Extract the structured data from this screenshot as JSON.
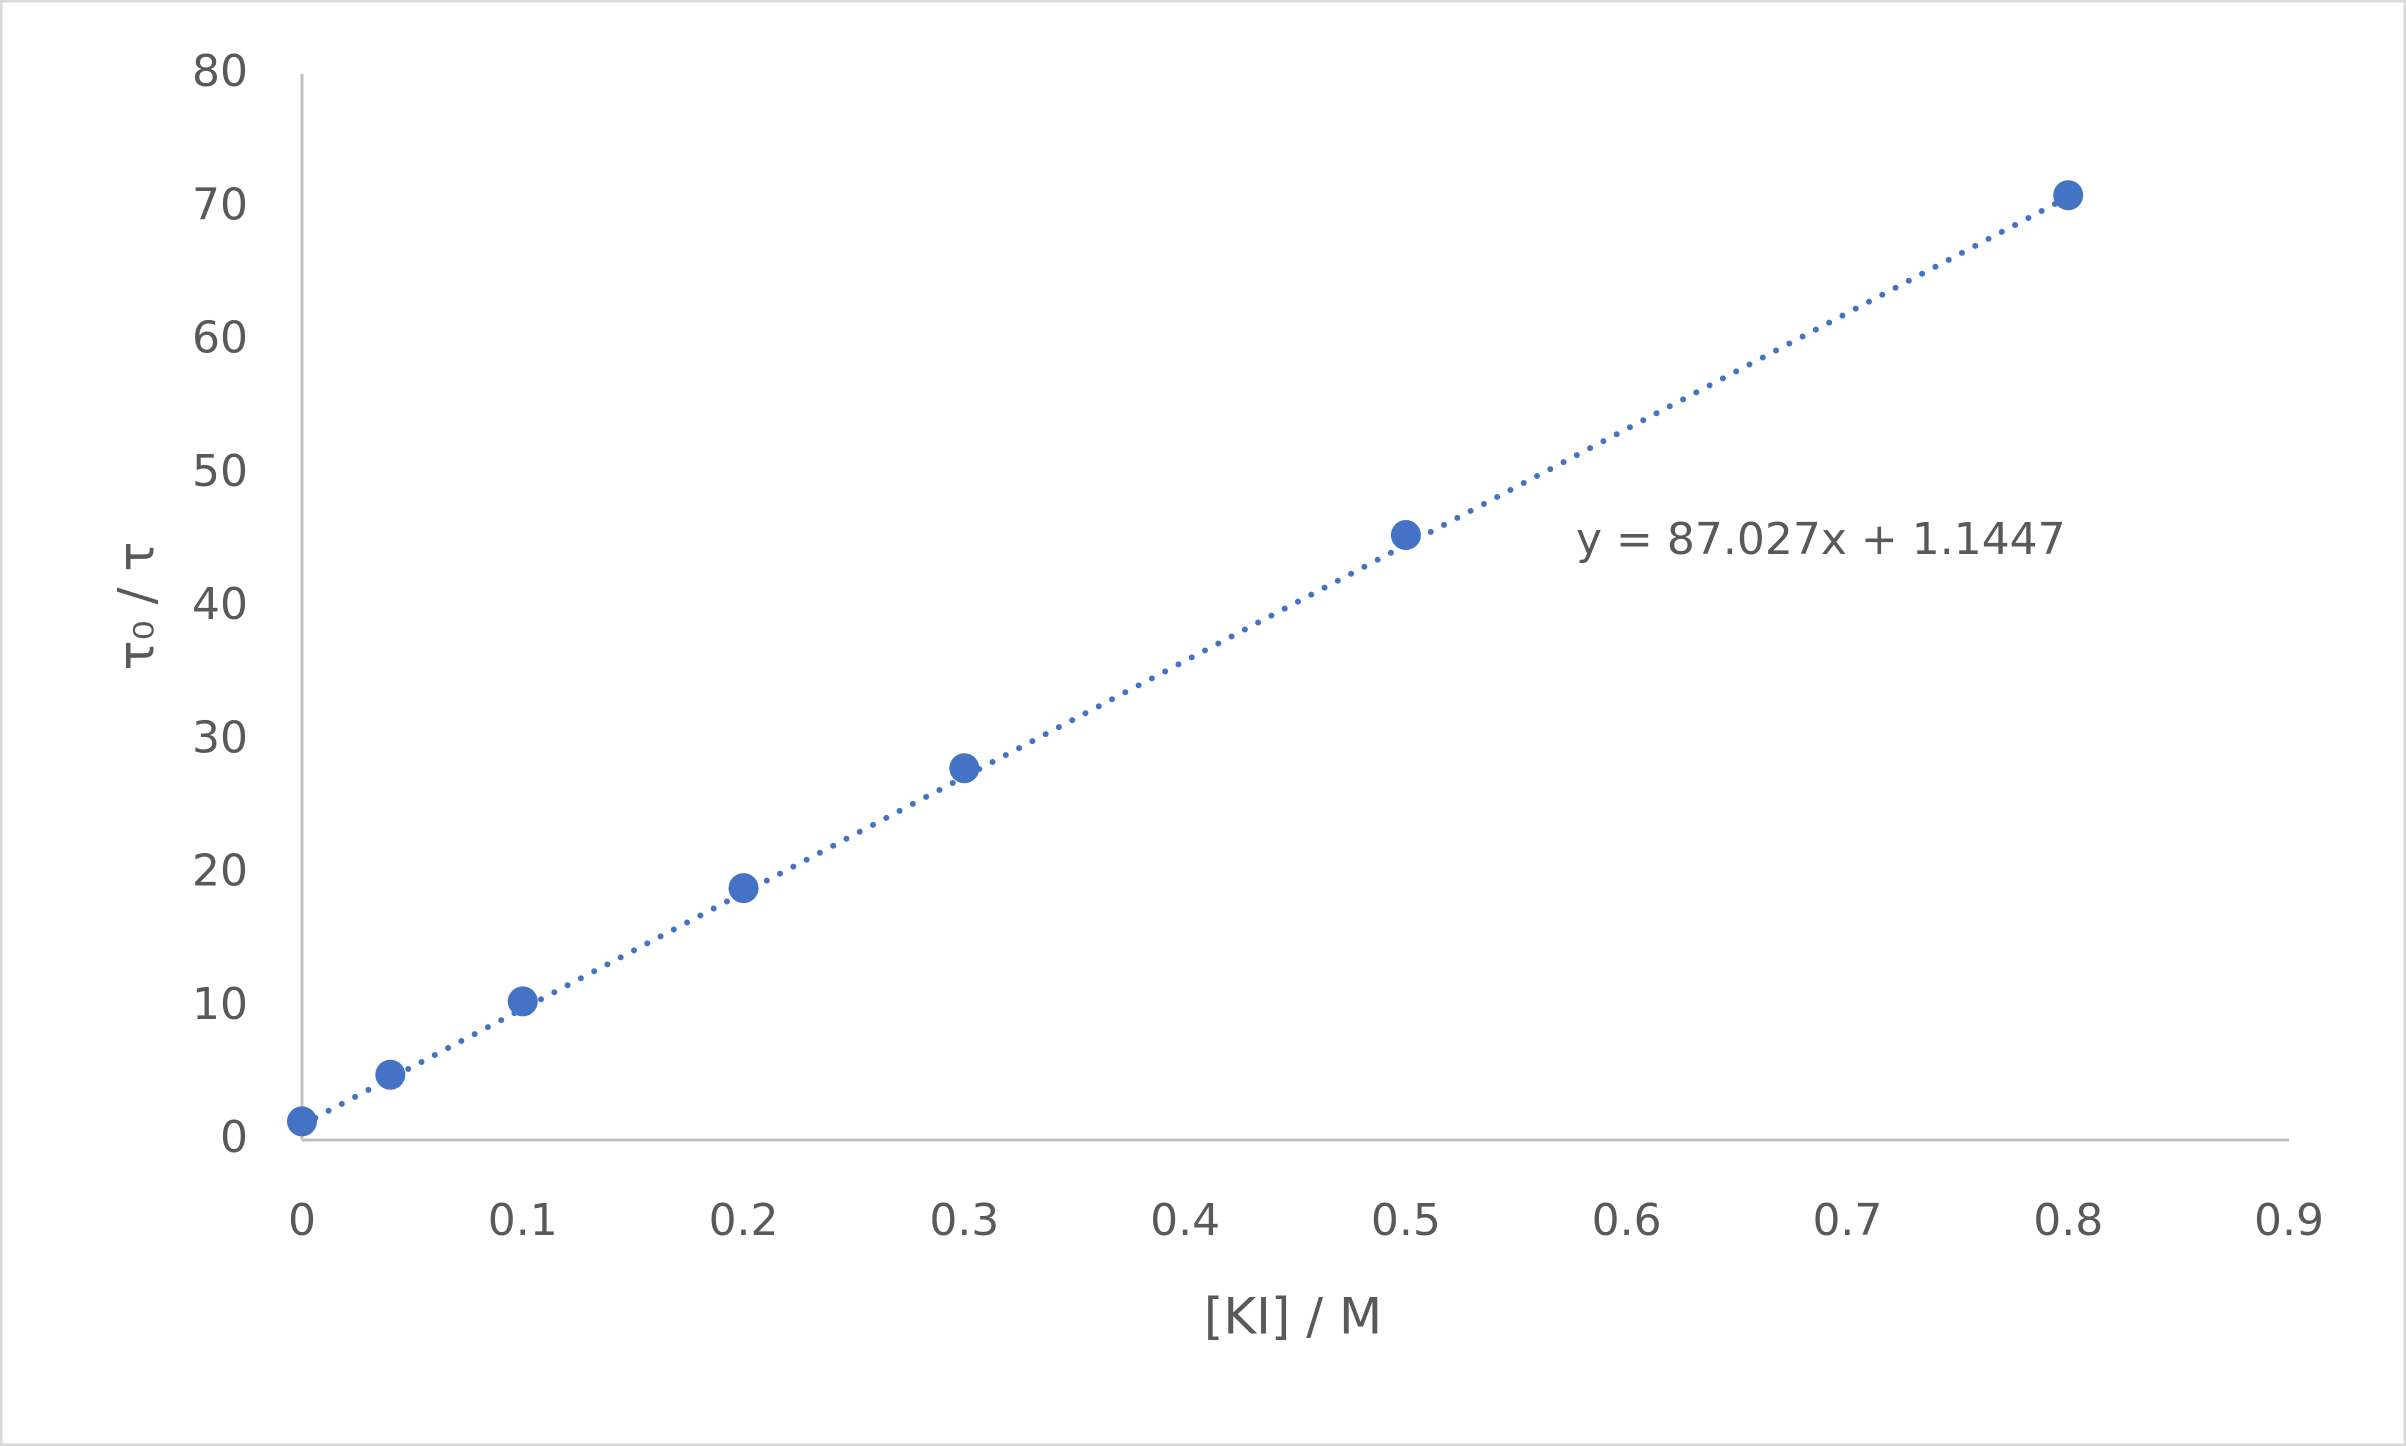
{
  "chart_data": {
    "type": "scatter",
    "xlabel": "[KI] / M",
    "ylabel": "τ₀ / τ",
    "x": [
      0,
      0.04,
      0.1,
      0.2,
      0.3,
      0.5,
      0.8
    ],
    "series": [
      {
        "name": "τ₀ / τ",
        "color": "#4472c4",
        "values": [
          1.4,
          4.9,
          10.4,
          18.9,
          27.9,
          45.4,
          70.9
        ]
      }
    ],
    "trendline": {
      "slope": 87.027,
      "intercept": 1.1447,
      "label": "y = 87.027x + 1.1447",
      "color": "#4472c4",
      "style": "dotted"
    },
    "xlim": [
      0,
      0.9
    ],
    "xticks": [
      0,
      0.1,
      0.2,
      0.3,
      0.4,
      0.5,
      0.6,
      0.7,
      0.8,
      0.9
    ],
    "ylim": [
      0,
      80
    ],
    "yticks": [
      0,
      10,
      20,
      30,
      40,
      50,
      60,
      70,
      80
    ],
    "grid": false,
    "legend": false
  }
}
